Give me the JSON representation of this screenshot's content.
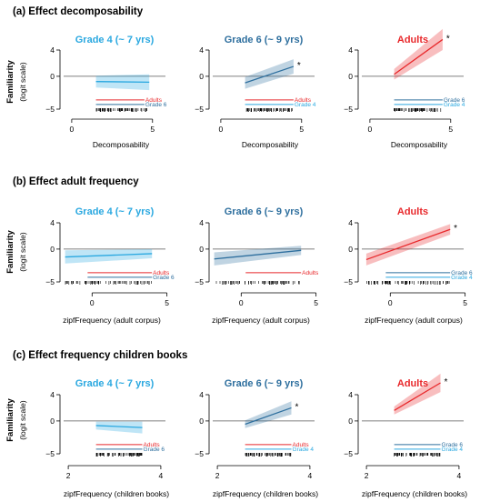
{
  "colors": {
    "grade4": "#2aa8e0",
    "grade6": "#2e6f9e",
    "adults": "#e8282b"
  },
  "y_axis": {
    "label": "Familiarity",
    "sublabel": "(logit scale)",
    "ticks": [
      "4",
      "0",
      "−5"
    ]
  },
  "sections": [
    {
      "title": "(a) Effect decomposability",
      "xlabel": "Decomposability",
      "xlim": [
        -0.5,
        5.8
      ],
      "xticks": [
        0,
        5
      ],
      "xtick_labels": [
        "0",
        "5"
      ],
      "panels": [
        {
          "title": "Grade 4 (~ 7 yrs)",
          "group": "grade4",
          "line": {
            "x": [
              1.5,
              4.8
            ],
            "y": [
              -0.8,
              -0.9
            ]
          },
          "band_halfwidth": [
            0.9,
            1.2
          ],
          "significant": false,
          "legend": [
            {
              "label": "Adults",
              "group": "adults",
              "x": [
                1.5,
                4.5
              ]
            },
            {
              "label": "Grade 6",
              "group": "grade6",
              "x": [
                1.5,
                4.5
              ]
            }
          ]
        },
        {
          "title": "Grade 6 (~ 9 yrs)",
          "group": "grade6",
          "line": {
            "x": [
              1.5,
              4.5
            ],
            "y": [
              -1.0,
              1.5
            ]
          },
          "band_halfwidth": [
            0.9,
            1.1
          ],
          "significant": true,
          "legend": [
            {
              "label": "Adults",
              "group": "adults",
              "x": [
                1.5,
                4.5
              ]
            },
            {
              "label": "Grade 4",
              "group": "grade4",
              "x": [
                1.5,
                4.5
              ]
            }
          ]
        },
        {
          "title": "Adults",
          "group": "adults",
          "line": {
            "x": [
              1.5,
              4.5
            ],
            "y": [
              0.3,
              5.6
            ]
          },
          "band_halfwidth": [
            0.8,
            1.6
          ],
          "significant": true,
          "legend": [
            {
              "label": "Grade 6",
              "group": "grade6",
              "x": [
                1.5,
                4.5
              ]
            },
            {
              "label": "Grade 4",
              "group": "grade4",
              "x": [
                1.5,
                4.5
              ]
            }
          ]
        }
      ]
    },
    {
      "title": "(b) Effect adult frequency",
      "xlabel": "zipfFrequency (adult corpus)",
      "xlim": [
        -1.9,
        4.9
      ],
      "xticks": [
        0,
        5
      ],
      "xtick_labels": [
        "0",
        "5"
      ],
      "panels": [
        {
          "title": "Grade 4 (~ 7 yrs)",
          "group": "grade4",
          "line": {
            "x": [
              -1.8,
              4.0
            ],
            "y": [
              -1.2,
              -0.7
            ]
          },
          "band_halfwidth": [
            1.0,
            0.7
          ],
          "significant": false,
          "legend": [
            {
              "label": "Adults",
              "group": "adults",
              "x": [
                -0.3,
                4.0
              ]
            },
            {
              "label": "Grade 6",
              "group": "grade6",
              "x": [
                -0.3,
                4.0
              ]
            }
          ]
        },
        {
          "title": "Grade 6 (~ 9 yrs)",
          "group": "grade6",
          "line": {
            "x": [
              -1.8,
              4.0
            ],
            "y": [
              -1.5,
              -0.2
            ]
          },
          "band_halfwidth": [
            1.0,
            0.7
          ],
          "significant": false,
          "legend": [
            {
              "label": "Adults",
              "group": "adults",
              "x": [
                0.3,
                4.0
              ]
            }
          ]
        },
        {
          "title": "Adults",
          "group": "adults",
          "line": {
            "x": [
              -1.6,
              4.0
            ],
            "y": [
              -1.6,
              3.0
            ]
          },
          "band_halfwidth": [
            0.9,
            0.8
          ],
          "significant": true,
          "legend": [
            {
              "label": "Grade 6",
              "group": "grade6",
              "x": [
                -0.3,
                4.0
              ]
            },
            {
              "label": "Grade 4",
              "group": "grade4",
              "x": [
                -0.3,
                4.0
              ]
            }
          ]
        }
      ]
    },
    {
      "title": "(c) Effect frequency children books",
      "xlabel": "zipfFrequency (children books)",
      "xlim": [
        1.9,
        4.1
      ],
      "xticks": [
        2,
        4
      ],
      "xtick_labels": [
        "2",
        "4"
      ],
      "panels": [
        {
          "title": "Grade 4 (~ 7 yrs)",
          "group": "grade4",
          "line": {
            "x": [
              2.6,
              3.6
            ],
            "y": [
              -0.7,
              -1.0
            ]
          },
          "band_halfwidth": [
            0.6,
            0.9
          ],
          "significant": false,
          "legend": [
            {
              "label": "Adults",
              "group": "adults",
              "x": [
                2.6,
                3.6
              ]
            },
            {
              "label": "Grade 6",
              "group": "grade6",
              "x": [
                2.6,
                3.6
              ]
            }
          ]
        },
        {
          "title": "Grade 6 (~ 9 yrs)",
          "group": "grade6",
          "line": {
            "x": [
              2.6,
              3.6
            ],
            "y": [
              -0.5,
              2.0
            ]
          },
          "band_halfwidth": [
            0.6,
            1.0
          ],
          "significant": true,
          "legend": [
            {
              "label": "Adults",
              "group": "adults",
              "x": [
                2.6,
                3.6
              ]
            },
            {
              "label": "Grade 4",
              "group": "grade4",
              "x": [
                2.6,
                3.6
              ]
            }
          ]
        },
        {
          "title": "Adults",
          "group": "adults",
          "line": {
            "x": [
              2.6,
              3.6
            ],
            "y": [
              1.6,
              5.8
            ]
          },
          "band_halfwidth": [
            0.6,
            1.4
          ],
          "significant": true,
          "legend": [
            {
              "label": "Grade 6",
              "group": "grade6",
              "x": [
                2.6,
                3.6
              ]
            },
            {
              "label": "Grade 4",
              "group": "grade4",
              "x": [
                2.6,
                3.6
              ]
            }
          ]
        }
      ]
    }
  ]
}
